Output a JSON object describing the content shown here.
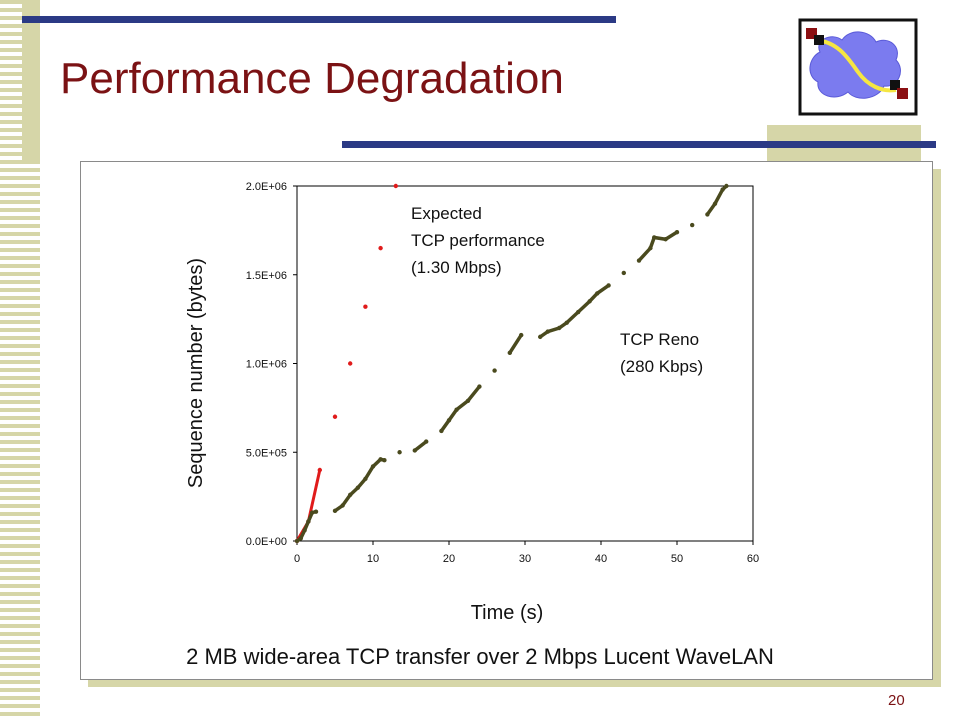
{
  "slide": {
    "title": "Performance Degradation",
    "caption": "2 MB wide-area TCP transfer over 2 Mbps Lucent WaveLAN",
    "number": "20"
  },
  "theme": {
    "title_color": "#7b1214",
    "rule_color": "#2b3a85",
    "accent_tan": "#d6d6a8",
    "logo_cloud": "#7b7bef",
    "logo_link": "#f5e642",
    "logo_node_red": "#8b0f12",
    "logo_node_black": "#111111"
  },
  "logo": {
    "icon": "network-cloud-icon"
  },
  "chart_data": {
    "type": "scatter",
    "xlabel": "Time (s)",
    "ylabel": "Sequence number (bytes)",
    "xlim": [
      0,
      60
    ],
    "ylim": [
      0,
      2000000
    ],
    "x_ticks": [
      "0",
      "10",
      "20",
      "30",
      "40",
      "50",
      "60"
    ],
    "y_ticks": [
      "0.0E+00",
      "5.0E+05",
      "1.0E+06",
      "1.5E+06",
      "2.0E+06"
    ],
    "grid": false,
    "series": [
      {
        "annotation": [
          "Expected",
          "TCP performance",
          "(1.30 Mbps)"
        ],
        "color": "#e01b1b",
        "points": [
          [
            0,
            0
          ],
          [
            1.5,
            110000
          ],
          [
            3,
            400000
          ],
          [
            5,
            700000
          ],
          [
            7,
            1000000
          ],
          [
            9,
            1320000
          ],
          [
            11,
            1650000
          ],
          [
            13,
            2000000
          ]
        ]
      },
      {
        "annotation": [
          "TCP Reno",
          "(280 Kbps)"
        ],
        "color": "#4a4a1e",
        "points": [
          [
            0,
            0
          ],
          [
            0.5,
            15000
          ],
          [
            1,
            60000
          ],
          [
            1.5,
            110000
          ],
          [
            2,
            160000
          ],
          [
            2.5,
            165000
          ],
          [
            5,
            170000
          ],
          [
            6,
            200000
          ],
          [
            7,
            260000
          ],
          [
            8,
            300000
          ],
          [
            9,
            350000
          ],
          [
            10,
            420000
          ],
          [
            11,
            460000
          ],
          [
            11.5,
            455000
          ],
          [
            13.5,
            500000
          ],
          [
            15.5,
            510000
          ],
          [
            17,
            560000
          ],
          [
            19,
            620000
          ],
          [
            20,
            680000
          ],
          [
            21,
            740000
          ],
          [
            22.5,
            790000
          ],
          [
            24,
            870000
          ],
          [
            26,
            960000
          ],
          [
            28,
            1060000
          ],
          [
            29.5,
            1160000
          ],
          [
            32,
            1150000
          ],
          [
            33,
            1180000
          ],
          [
            34.5,
            1200000
          ],
          [
            35.5,
            1230000
          ],
          [
            37,
            1290000
          ],
          [
            38.5,
            1350000
          ],
          [
            39.5,
            1395000
          ],
          [
            41,
            1440000
          ],
          [
            43,
            1510000
          ],
          [
            45,
            1580000
          ],
          [
            46.5,
            1650000
          ],
          [
            47,
            1710000
          ],
          [
            48.5,
            1700000
          ],
          [
            50,
            1740000
          ],
          [
            52,
            1780000
          ],
          [
            54,
            1840000
          ],
          [
            55,
            1900000
          ],
          [
            56,
            1980000
          ],
          [
            56.5,
            2000000
          ]
        ]
      }
    ]
  }
}
